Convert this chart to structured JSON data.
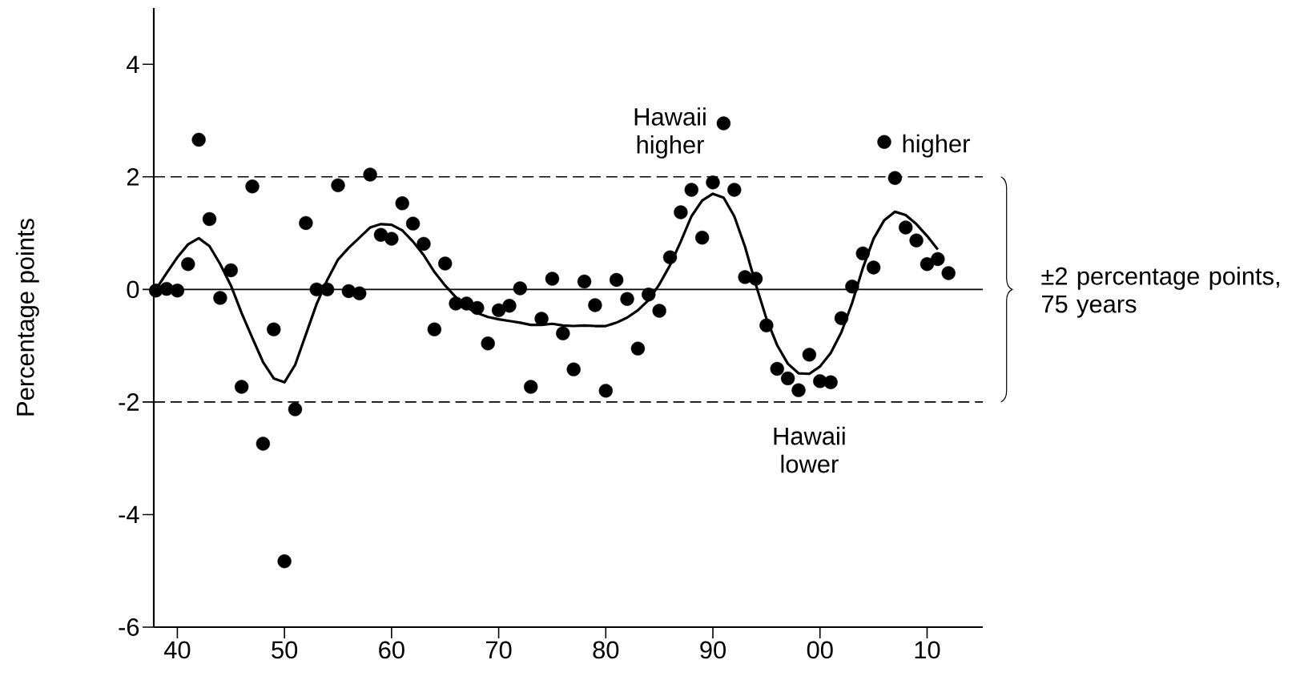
{
  "chart_data": {
    "type": "scatter",
    "ylabel": "Percentage points",
    "x": [
      1938,
      1939,
      1940,
      1941,
      1942,
      1943,
      1944,
      1945,
      1946,
      1947,
      1948,
      1949,
      1950,
      1951,
      1952,
      1953,
      1954,
      1955,
      1956,
      1957,
      1958,
      1959,
      1960,
      1961,
      1962,
      1963,
      1964,
      1965,
      1966,
      1967,
      1968,
      1969,
      1970,
      1971,
      1972,
      1973,
      1974,
      1975,
      1976,
      1977,
      1978,
      1979,
      1980,
      1981,
      1982,
      1983,
      1984,
      1985,
      1986,
      1987,
      1988,
      1989,
      1990,
      1991,
      1992,
      1993,
      1994,
      1995,
      1996,
      1997,
      1998,
      1999,
      2000,
      2001,
      2002,
      2003,
      2004,
      2005,
      2006,
      2007,
      2008,
      2009,
      2010,
      2011,
      2012
    ],
    "series": [
      {
        "color": "#000000",
        "marker": "circle",
        "values": [
          -0.02,
          0.01,
          -0.02,
          0.45,
          2.66,
          1.25,
          -0.15,
          0.34,
          -1.73,
          1.83,
          -2.74,
          -0.71,
          -4.83,
          -2.13,
          1.18,
          0.0,
          0.0,
          1.85,
          -0.03,
          -0.07,
          2.04,
          0.97,
          0.9,
          1.53,
          1.17,
          0.81,
          -0.71,
          0.46,
          -0.25,
          -0.25,
          -0.33,
          -0.96,
          -0.37,
          -0.29,
          0.02,
          -1.73,
          -0.52,
          0.19,
          -0.78,
          -1.42,
          0.14,
          -0.28,
          -1.8,
          0.17,
          -0.17,
          -1.05,
          -0.09,
          -0.38,
          0.57,
          1.37,
          1.77,
          0.92,
          1.9,
          2.95,
          1.77,
          0.22,
          0.19,
          -0.64,
          -1.41,
          -1.58,
          -1.79,
          -1.16,
          -1.63,
          -1.65,
          -0.51,
          0.05,
          0.64,
          0.39,
          2.62,
          1.98,
          1.1,
          0.87,
          0.45,
          0.54,
          0.29
        ]
      },
      {
        "type": "line",
        "color": "#000000",
        "marker": "none",
        "line_style": "solid",
        "x": [
          1938,
          1939,
          1940,
          1941,
          1942,
          1943,
          1944,
          1945,
          1946,
          1947,
          1948,
          1949,
          1950,
          1951,
          1952,
          1953,
          1954,
          1955,
          1956,
          1957,
          1958,
          1959,
          1960,
          1961,
          1962,
          1963,
          1964,
          1965,
          1966,
          1967,
          1968,
          1969,
          1970,
          1971,
          1972,
          1973,
          1974,
          1975,
          1976,
          1977,
          1978,
          1979,
          1980,
          1981,
          1982,
          1983,
          1984,
          1985,
          1986,
          1987,
          1988,
          1989,
          1990,
          1991,
          1992,
          1993,
          1994,
          1995,
          1996,
          1997,
          1998,
          1999,
          2000,
          2001,
          2002,
          2003,
          2004,
          2005,
          2006,
          2007,
          2008,
          2009,
          2010,
          2011
        ],
        "values": [
          0.0,
          0.29,
          0.57,
          0.8,
          0.91,
          0.77,
          0.45,
          0.07,
          -0.42,
          -0.86,
          -1.29,
          -1.58,
          -1.65,
          -1.34,
          -0.8,
          -0.26,
          0.17,
          0.53,
          0.74,
          0.92,
          1.1,
          1.16,
          1.15,
          1.05,
          0.85,
          0.61,
          0.31,
          0.07,
          -0.14,
          -0.32,
          -0.42,
          -0.49,
          -0.53,
          -0.56,
          -0.59,
          -0.63,
          -0.63,
          -0.61,
          -0.64,
          -0.65,
          -0.64,
          -0.65,
          -0.65,
          -0.59,
          -0.5,
          -0.37,
          -0.19,
          0.09,
          0.43,
          0.85,
          1.3,
          1.58,
          1.7,
          1.63,
          1.3,
          0.76,
          0.09,
          -0.52,
          -0.99,
          -1.32,
          -1.49,
          -1.5,
          -1.37,
          -1.13,
          -0.76,
          -0.24,
          0.38,
          0.9,
          1.23,
          1.38,
          1.32,
          1.16,
          0.95,
          0.71
        ]
      }
    ],
    "xlim": [
      1937.8,
      2015.2
    ],
    "ylim": [
      -6,
      5
    ],
    "xticks": [
      {
        "value": 1940,
        "label": "40"
      },
      {
        "value": 1950,
        "label": "50"
      },
      {
        "value": 1960,
        "label": "60"
      },
      {
        "value": 1970,
        "label": "70"
      },
      {
        "value": 1980,
        "label": "80"
      },
      {
        "value": 1990,
        "label": "90"
      },
      {
        "value": 2000,
        "label": "00"
      },
      {
        "value": 2010,
        "label": "10"
      }
    ],
    "yticks": [
      -6,
      -4,
      -2,
      0,
      2,
      4
    ],
    "ref_lines": [
      {
        "axis": "y",
        "value": 2,
        "color": "#000000",
        "line_style": "dashed"
      },
      {
        "axis": "y",
        "value": 0,
        "color": "#000000",
        "line_style": "solid"
      },
      {
        "axis": "y",
        "value": -2,
        "color": "#000000",
        "line_style": "dashed"
      }
    ],
    "annotations": [
      "Hawaii higher",
      "higher",
      "Hawaii lower",
      "±2 percentage points, 75 years"
    ],
    "grid": false
  }
}
